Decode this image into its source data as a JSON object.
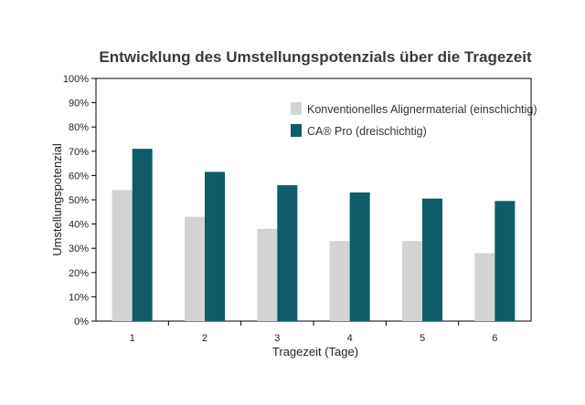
{
  "chart_data": {
    "type": "bar",
    "title": "Entwicklung des Umstellungspotenzials über die Tragezeit",
    "xlabel": "Tragezeit (Tage)",
    "ylabel": "Umstellungspotenzial",
    "categories": [
      "1",
      "2",
      "3",
      "4",
      "5",
      "6"
    ],
    "series": [
      {
        "name": "Konventionelles Alignermaterial (einschichtig)",
        "color": "#d3d3d3",
        "values": [
          54,
          43,
          38,
          33,
          33,
          28
        ]
      },
      {
        "name": "CA® Pro (dreischichtig)",
        "color": "#0d5c66",
        "values": [
          71,
          61.5,
          56,
          53,
          50.5,
          49.5
        ]
      }
    ],
    "ylim": [
      0,
      100
    ],
    "yticks": [
      "0%",
      "10%",
      "20%",
      "30%",
      "40%",
      "50%",
      "60%",
      "70%",
      "80%",
      "90%",
      "100%"
    ],
    "grid": false,
    "legend_position": "top-right"
  }
}
